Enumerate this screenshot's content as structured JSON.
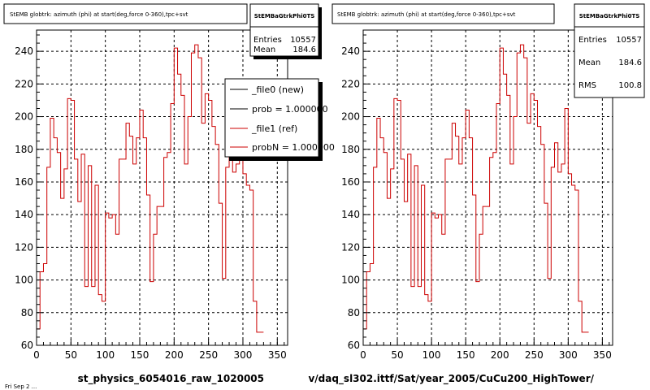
{
  "pads": [
    {
      "title": "StEMB globtrk: azimuth (phi) at start(deg,force 0-360),tpc+svt",
      "stats_name": "StEMBaGtrkPhi0TS",
      "stats": [
        {
          "label": "Entries",
          "value": "10557"
        },
        {
          "label": "Mean",
          "value": "184.6"
        }
      ],
      "xlabel": "st_physics_6054016_raw_1020005",
      "legend": [
        {
          "label": "_file0 (new)",
          "color": "#000000"
        },
        {
          "label": "prob = 1.000000",
          "color": "#000000"
        },
        {
          "label": "_file1 (ref)",
          "color": "#cc0000"
        },
        {
          "label": "probN = 1.000000",
          "color": "#cc0000"
        }
      ]
    },
    {
      "title": "StEMB globtrk: azimuth (phi) at start(deg,force 0-360),tpc+svt",
      "stats_name": "StEMBaGtrkPhi0TS",
      "stats": [
        {
          "label": "Entries",
          "value": "10557"
        },
        {
          "label": "Mean",
          "value": "184.6"
        },
        {
          "label": "RMS",
          "value": "100.8"
        }
      ],
      "xlabel": "v/daq_sl302.ittf/Sat/year_2005/CuCu200_HighTower/",
      "legend": []
    }
  ],
  "footer_text": "Fri Sep 2 ...",
  "chart_data": [
    {
      "type": "bar",
      "title": "StEMB globtrk: azimuth (phi) at start(deg,force 0-360),tpc+svt",
      "xlabel": "st_physics_6054016_raw_1020005",
      "ylabel": "",
      "xlim": [
        0,
        365
      ],
      "ylim": [
        60,
        253
      ],
      "xticks": [
        0,
        50,
        100,
        150,
        200,
        250,
        300,
        350
      ],
      "yticks": [
        60,
        80,
        100,
        120,
        140,
        160,
        180,
        200,
        220,
        240
      ],
      "grid": true,
      "bin_width": 5,
      "series": [
        {
          "name": "_file1 (ref)",
          "color": "#cc0000",
          "values": [
            70,
            105,
            110,
            169,
            199,
            187,
            178,
            150,
            168,
            211,
            210,
            174,
            148,
            177,
            96,
            170,
            96,
            158,
            91,
            87,
            141,
            138,
            140,
            128,
            174,
            174,
            196,
            188,
            171,
            187,
            204,
            187,
            152,
            99,
            128,
            145,
            145,
            175,
            178,
            208,
            242,
            226,
            213,
            171,
            200,
            239,
            244,
            236,
            196,
            214,
            210,
            194,
            183,
            147,
            101,
            169,
            184,
            166,
            171,
            205,
            165,
            158,
            155,
            87,
            68,
            68
          ]
        }
      ]
    },
    {
      "type": "bar",
      "title": "StEMB globtrk: azimuth (phi) at start(deg,force 0-360),tpc+svt",
      "xlabel": "v/daq_sl302.ittf/Sat/year_2005/CuCu200_HighTower/",
      "ylabel": "",
      "xlim": [
        0,
        365
      ],
      "ylim": [
        60,
        253
      ],
      "xticks": [
        0,
        50,
        100,
        150,
        200,
        250,
        300,
        350
      ],
      "yticks": [
        60,
        80,
        100,
        120,
        140,
        160,
        180,
        200,
        220,
        240
      ],
      "grid": true,
      "bin_width": 5,
      "series": [
        {
          "name": "",
          "color": "#cc0000",
          "values": [
            70,
            105,
            110,
            169,
            199,
            187,
            178,
            150,
            168,
            211,
            210,
            174,
            148,
            177,
            96,
            170,
            96,
            158,
            91,
            87,
            141,
            138,
            140,
            128,
            174,
            174,
            196,
            188,
            171,
            187,
            204,
            187,
            152,
            99,
            128,
            145,
            145,
            175,
            178,
            208,
            242,
            226,
            213,
            171,
            200,
            239,
            244,
            236,
            196,
            214,
            210,
            194,
            183,
            147,
            101,
            169,
            184,
            166,
            171,
            205,
            165,
            158,
            155,
            87,
            68,
            68
          ]
        }
      ]
    }
  ]
}
